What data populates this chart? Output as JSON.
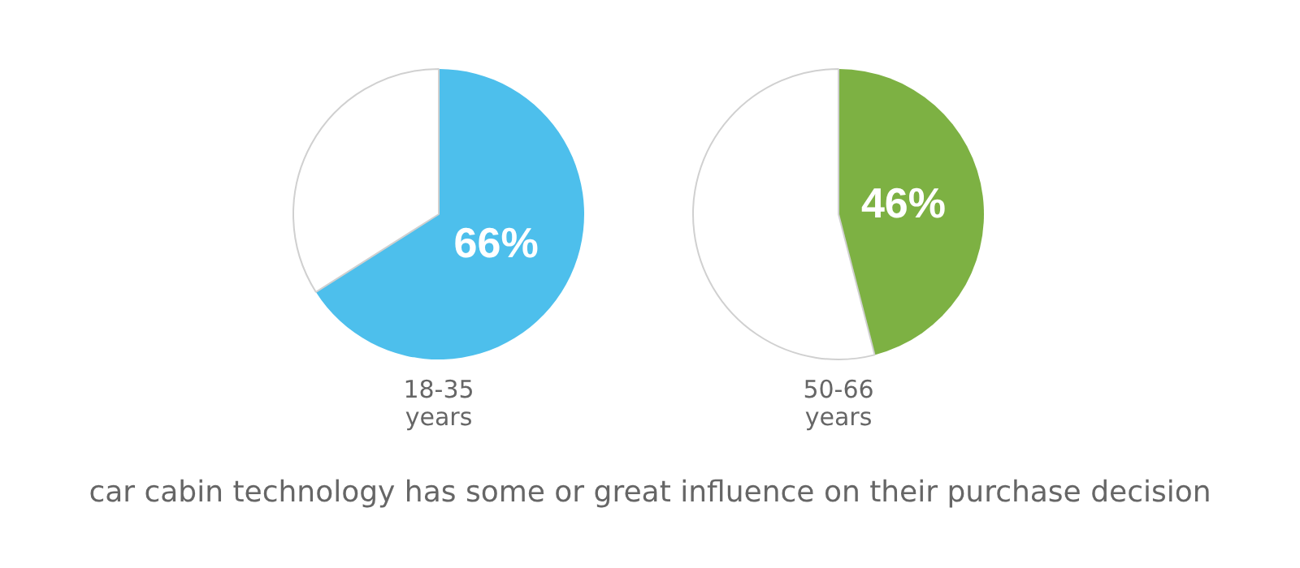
{
  "chart_data": [
    {
      "type": "pie",
      "title": "18-35 years",
      "categories": [
        null,
        null
      ],
      "values": [
        66,
        34
      ],
      "colors": [
        "#4dbfec",
        "#ffffff"
      ],
      "value_labels": [
        "66%",
        null
      ]
    },
    {
      "type": "pie",
      "title": "50-66 years",
      "categories": [
        null,
        null
      ],
      "values": [
        46,
        54
      ],
      "colors": [
        "#7db143",
        "#ffffff"
      ],
      "value_labels": [
        "46%",
        null
      ]
    },
    {
      "type": "other",
      "annotations": [
        "car cabin technology has some or great influence on their purchase decision"
      ]
    }
  ]
}
